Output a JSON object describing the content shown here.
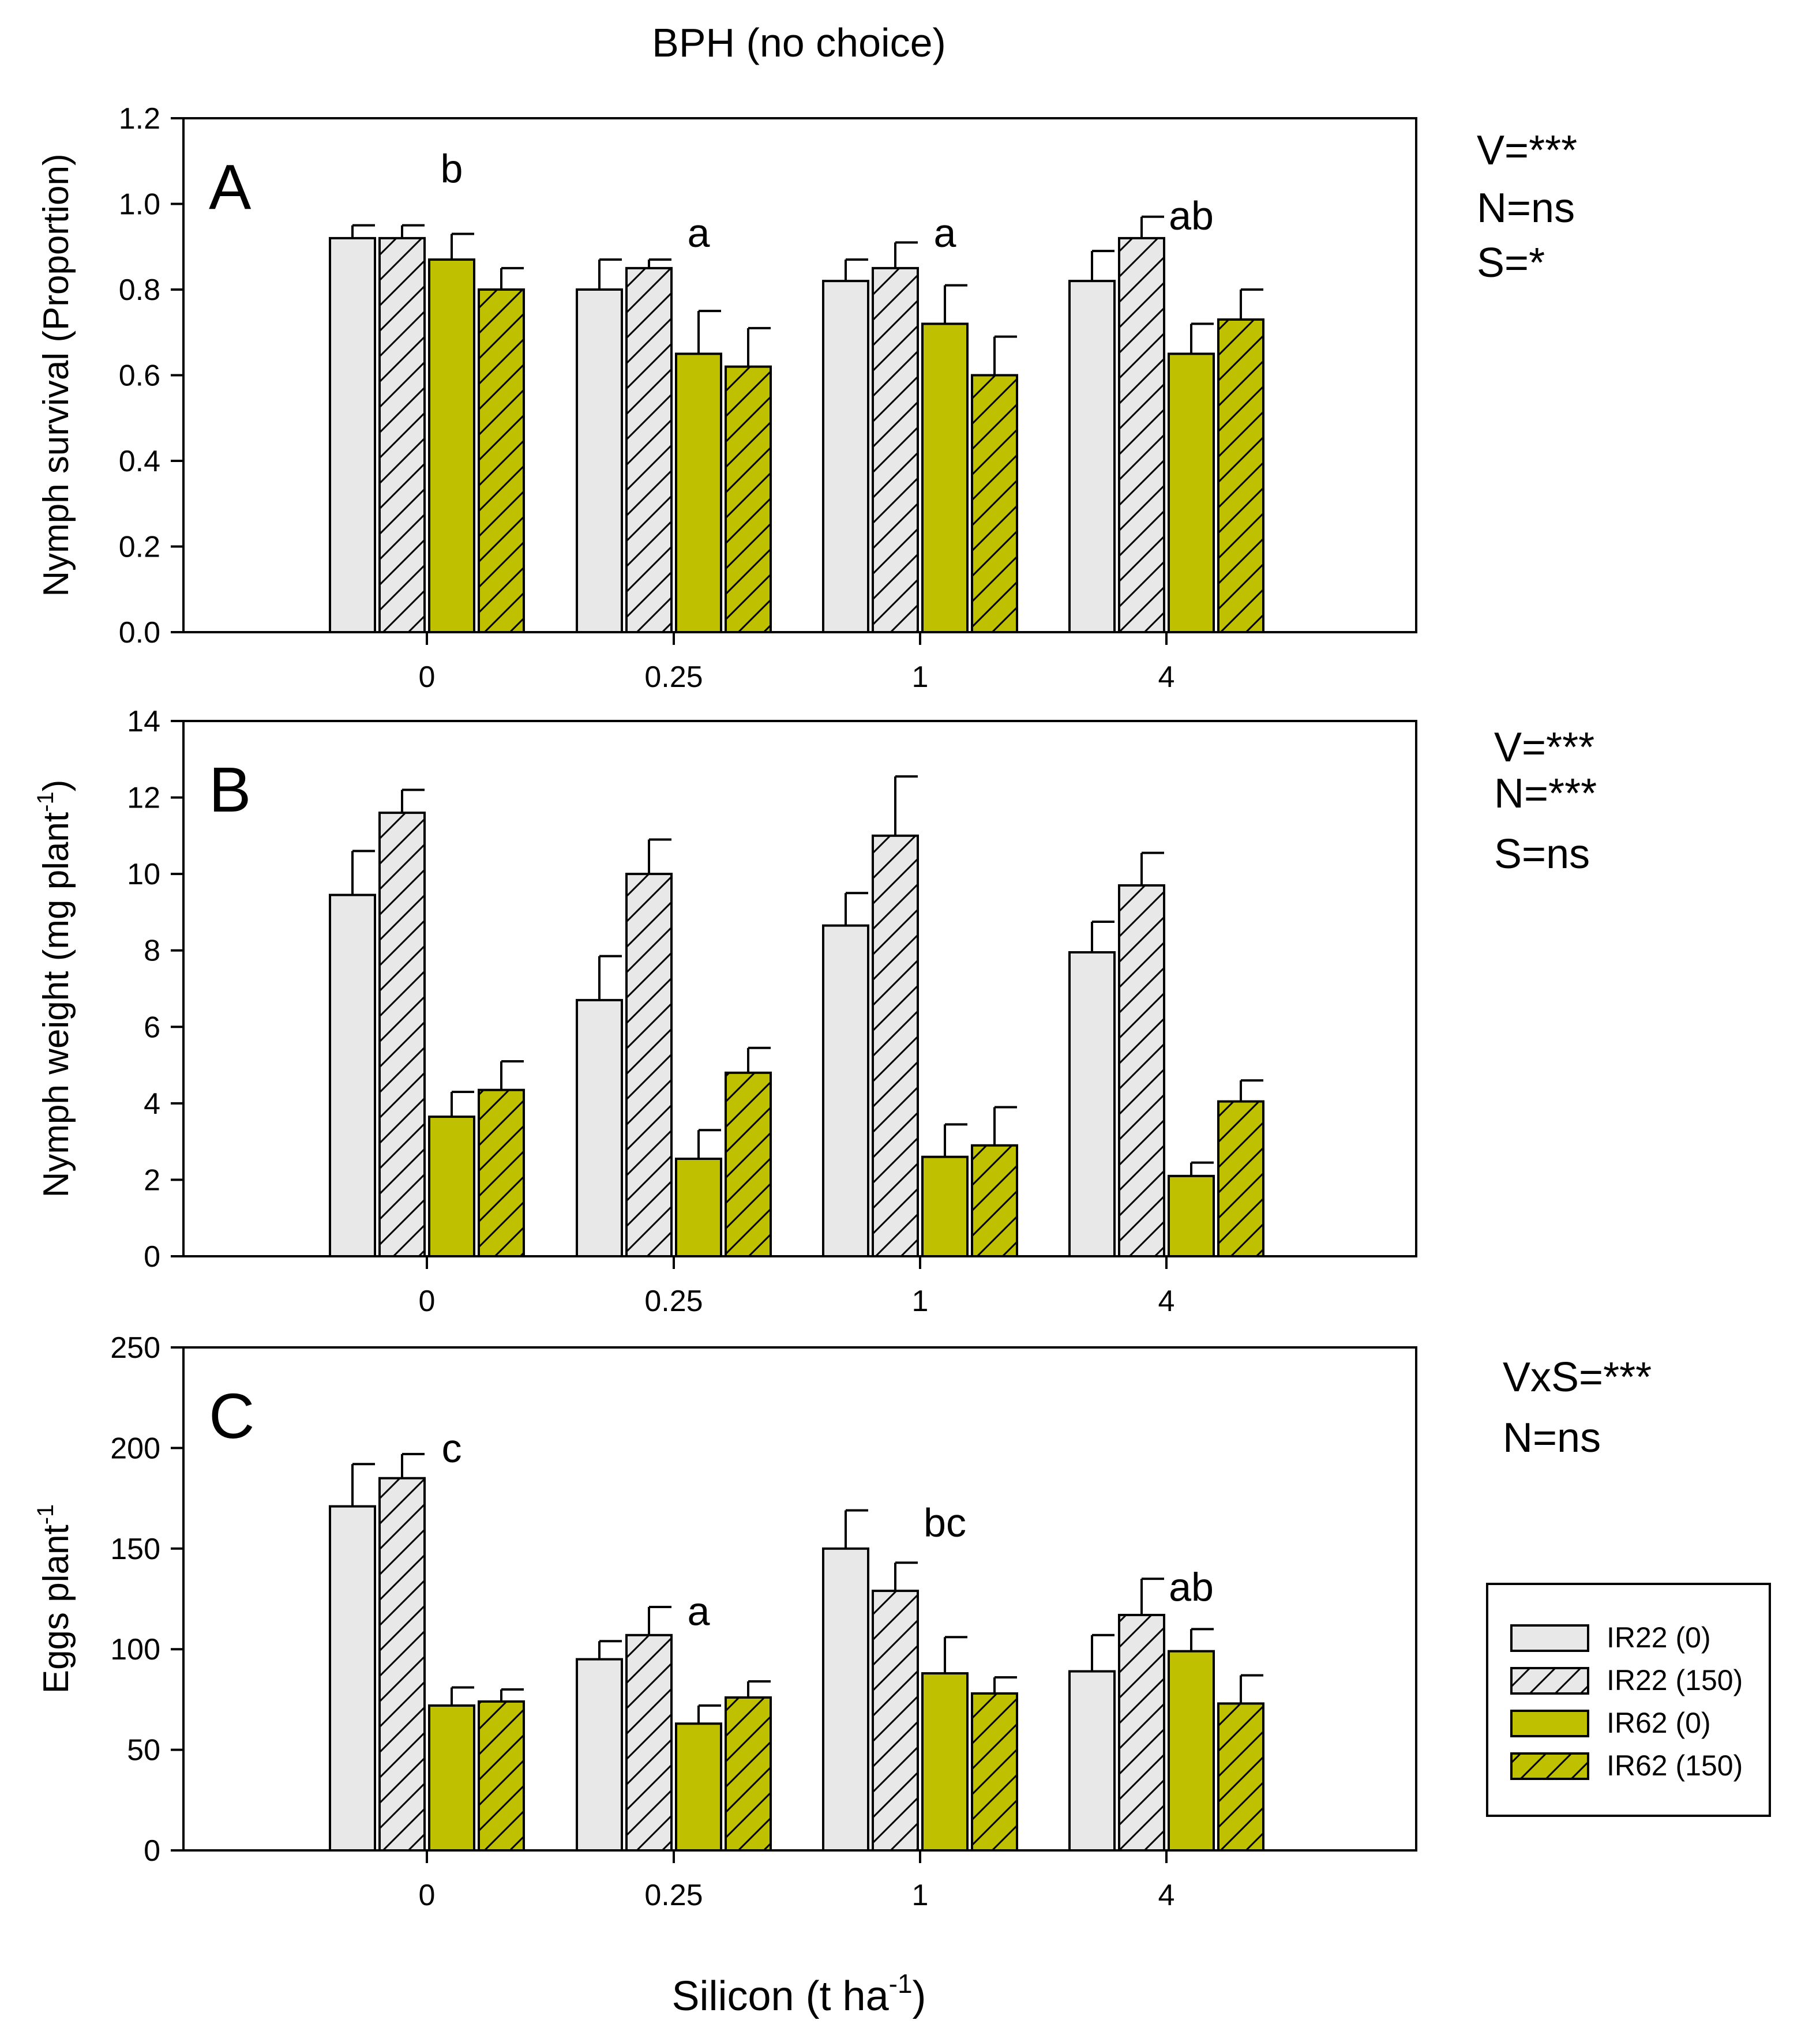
{
  "figure_title": "BPH (no choice)",
  "shared_xlabel": "Silicon (t ha",
  "shared_xlabel_sup": "-1",
  "shared_xlabel_end": ")",
  "colors": {
    "IR22": "#e8e8e8",
    "IR62": "#bfc000",
    "outline": "#000000"
  },
  "legend": {
    "items": [
      {
        "label": "IR22 (0)",
        "variety": "IR22",
        "hatched": false
      },
      {
        "label": "IR22 (150)",
        "variety": "IR22",
        "hatched": true
      },
      {
        "label": "IR62 (0)",
        "variety": "IR62",
        "hatched": false
      },
      {
        "label": "IR62 (150)",
        "variety": "IR62",
        "hatched": true
      }
    ]
  },
  "chart_data": [
    {
      "type": "bar",
      "panel_label": "A",
      "categories": [
        "0",
        "0.25",
        "1",
        "4"
      ],
      "ylabel": "Nymph survival (Proportion)",
      "ylabel_sup": "",
      "ylabel_end": "",
      "ylim": [
        0,
        1.2
      ],
      "yticks": [
        "0.0",
        "0.2",
        "0.4",
        "0.6",
        "0.8",
        "1.0",
        "1.2"
      ],
      "tick_step": 0.2,
      "series": [
        {
          "name": "IR22 (0)",
          "values": [
            0.92,
            0.8,
            0.82,
            0.82
          ],
          "errors": [
            0.03,
            0.07,
            0.05,
            0.07
          ]
        },
        {
          "name": "IR22 (150)",
          "values": [
            0.92,
            0.85,
            0.85,
            0.92
          ],
          "errors": [
            0.03,
            0.02,
            0.06,
            0.05
          ]
        },
        {
          "name": "IR62 (0)",
          "values": [
            0.87,
            0.65,
            0.72,
            0.65
          ],
          "errors": [
            0.06,
            0.1,
            0.09,
            0.07
          ]
        },
        {
          "name": "IR62 (150)",
          "values": [
            0.8,
            0.62,
            0.6,
            0.73
          ],
          "errors": [
            0.05,
            0.09,
            0.09,
            0.07
          ]
        }
      ],
      "letters": [
        {
          "category": "0",
          "text": "b",
          "y": 1.05
        },
        {
          "category": "0.25",
          "text": "a",
          "y": 0.9
        },
        {
          "category": "1",
          "text": "a",
          "y": 0.9
        },
        {
          "category": "4",
          "text": "ab",
          "y": 0.94
        }
      ],
      "stats": [
        "V=***",
        "N=ns",
        "S=*"
      ]
    },
    {
      "type": "bar",
      "panel_label": "B",
      "categories": [
        "0",
        "0.25",
        "1",
        "4"
      ],
      "ylabel": "Nymph weight (mg plant",
      "ylabel_sup": "-1",
      "ylabel_end": ")",
      "ylim": [
        0,
        14
      ],
      "yticks": [
        "0",
        "2",
        "4",
        "6",
        "8",
        "10",
        "12",
        "14"
      ],
      "tick_step": 2,
      "series": [
        {
          "name": "IR22 (0)",
          "values": [
            9.45,
            6.7,
            8.65,
            7.95
          ],
          "errors": [
            1.15,
            1.15,
            0.85,
            0.8
          ]
        },
        {
          "name": "IR22 (150)",
          "values": [
            11.6,
            10.0,
            11.0,
            9.7
          ],
          "errors": [
            0.6,
            0.9,
            1.55,
            0.85
          ]
        },
        {
          "name": "IR62 (0)",
          "values": [
            3.65,
            2.55,
            2.6,
            2.1
          ],
          "errors": [
            0.65,
            0.75,
            0.85,
            0.35
          ]
        },
        {
          "name": "IR62 (150)",
          "values": [
            4.35,
            4.8,
            2.9,
            4.05
          ],
          "errors": [
            0.75,
            0.65,
            1.0,
            0.55
          ]
        }
      ],
      "letters": [],
      "stats": [
        "V=***",
        "N=***",
        "S=ns"
      ]
    },
    {
      "type": "bar",
      "panel_label": "C",
      "categories": [
        "0",
        "0.25",
        "1",
        "4"
      ],
      "ylabel": "Eggs plant",
      "ylabel_sup": "-1",
      "ylabel_end": "",
      "ylim": [
        0,
        250
      ],
      "yticks": [
        "0",
        "50",
        "100",
        "150",
        "200",
        "250"
      ],
      "tick_step": 50,
      "series": [
        {
          "name": "IR22 (0)",
          "values": [
            171,
            95,
            150,
            89
          ],
          "errors": [
            21,
            9,
            19,
            18
          ]
        },
        {
          "name": "IR22 (150)",
          "values": [
            185,
            107,
            129,
            117
          ],
          "errors": [
            12,
            14,
            14,
            18
          ]
        },
        {
          "name": "IR62 (0)",
          "values": [
            72,
            63,
            88,
            99
          ],
          "errors": [
            9,
            9,
            18,
            11
          ]
        },
        {
          "name": "IR62 (150)",
          "values": [
            74,
            76,
            78,
            73
          ],
          "errors": [
            6,
            8,
            8,
            14
          ]
        }
      ],
      "letters": [
        {
          "category": "0",
          "text": "c",
          "y": 193
        },
        {
          "category": "0.25",
          "text": "a",
          "y": 112
        },
        {
          "category": "1",
          "text": "bc",
          "y": 156
        },
        {
          "category": "4",
          "text": "ab",
          "y": 124
        }
      ],
      "stats": [
        "VxS=***",
        "N=ns"
      ]
    }
  ]
}
